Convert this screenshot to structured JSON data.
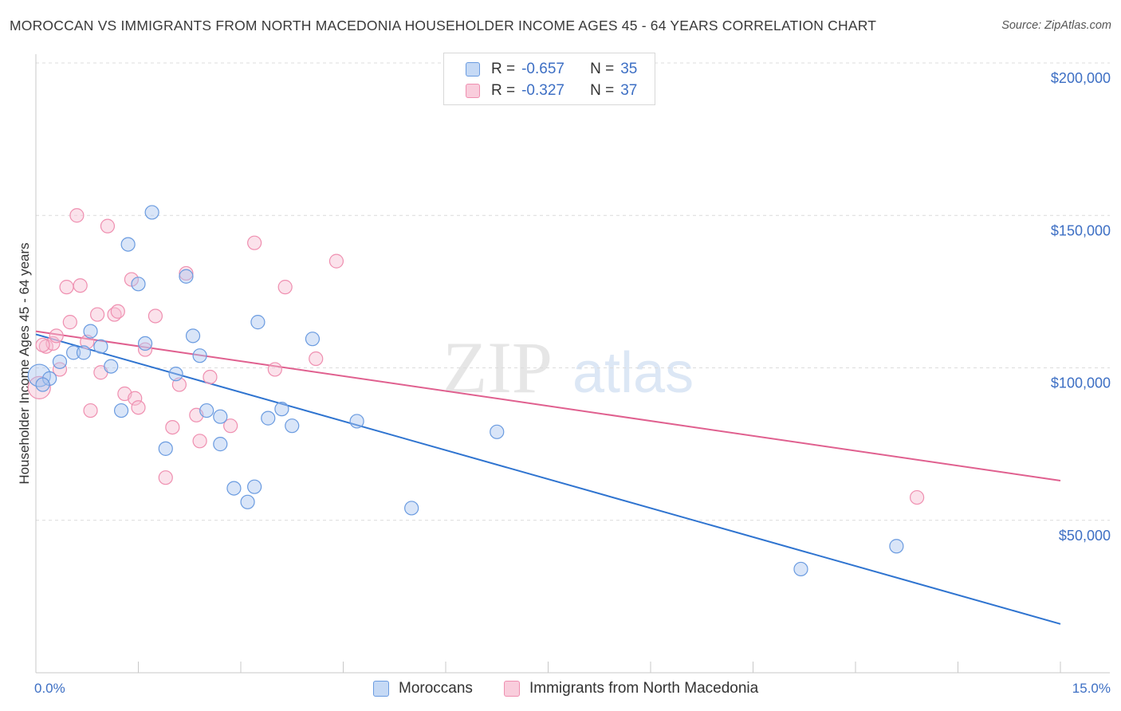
{
  "title": "MOROCCAN VS IMMIGRANTS FROM NORTH MACEDONIA HOUSEHOLDER INCOME AGES 45 - 64 YEARS CORRELATION CHART",
  "source": "Source: ZipAtlas.com",
  "watermark": {
    "zip": "ZIP",
    "atlas": "atlas"
  },
  "legend": {
    "r_label": "R =",
    "n_label": "N =",
    "rows": [
      {
        "r": "-0.657",
        "n": "35"
      },
      {
        "r": "-0.327",
        "n": "37"
      }
    ]
  },
  "bottom_legend": [
    "Moroccans",
    "Immigrants from North Macedonia"
  ],
  "chart_data": {
    "type": "scatter",
    "title": "MOROCCAN VS IMMIGRANTS FROM NORTH MACEDONIA HOUSEHOLDER INCOME AGES 45 - 64 YEARS CORRELATION CHART",
    "xlabel": "",
    "ylabel": "Householder Income Ages 45 - 64 years",
    "xlim": [
      0,
      15
    ],
    "ylim": [
      0,
      210000
    ],
    "x_tick_labels": [
      "0.0%",
      "15.0%"
    ],
    "y_tick_labels": [
      "$50,000",
      "$100,000",
      "$150,000",
      "$200,000"
    ],
    "y_tick_values": [
      50000,
      100000,
      150000,
      200000
    ],
    "grid": "horizontal dashed",
    "legend_position": "top-center",
    "colors": {
      "moroccans": "#6a9be0",
      "macedonia": "#ef8fb0",
      "moroccans_line": "#2f74d0",
      "macedonia_line": "#e0608f"
    },
    "series": [
      {
        "name": "Moroccans",
        "color": "#6a9be0",
        "points": [
          [
            0.05,
            97500
          ],
          [
            0.2,
            96500
          ],
          [
            0.35,
            102000
          ],
          [
            0.55,
            105000
          ],
          [
            0.7,
            105000
          ],
          [
            0.8,
            112000
          ],
          [
            0.95,
            107000
          ],
          [
            1.1,
            100500
          ],
          [
            1.25,
            86000
          ],
          [
            1.35,
            140500
          ],
          [
            1.5,
            127500
          ],
          [
            1.6,
            108000
          ],
          [
            1.7,
            151000
          ],
          [
            1.9,
            73500
          ],
          [
            2.05,
            98000
          ],
          [
            2.2,
            130000
          ],
          [
            2.3,
            110500
          ],
          [
            2.4,
            104000
          ],
          [
            2.5,
            86000
          ],
          [
            2.7,
            84000
          ],
          [
            2.7,
            75000
          ],
          [
            2.9,
            60500
          ],
          [
            3.1,
            56000
          ],
          [
            3.2,
            61000
          ],
          [
            3.25,
            115000
          ],
          [
            3.4,
            83500
          ],
          [
            3.6,
            86500
          ],
          [
            3.75,
            81000
          ],
          [
            4.05,
            109500
          ],
          [
            4.7,
            82500
          ],
          [
            5.5,
            54000
          ],
          [
            6.75,
            79000
          ],
          [
            11.2,
            34000
          ],
          [
            12.6,
            41500
          ],
          [
            0.1,
            94500
          ]
        ]
      },
      {
        "name": "Immigrants from North Macedonia",
        "color": "#ef8fb0",
        "points": [
          [
            0.05,
            93500
          ],
          [
            0.15,
            107000
          ],
          [
            0.25,
            108000
          ],
          [
            0.3,
            110500
          ],
          [
            0.35,
            99500
          ],
          [
            0.45,
            126500
          ],
          [
            0.5,
            115000
          ],
          [
            0.6,
            150000
          ],
          [
            0.65,
            127000
          ],
          [
            0.75,
            108500
          ],
          [
            0.8,
            86000
          ],
          [
            0.9,
            117500
          ],
          [
            0.95,
            98500
          ],
          [
            1.05,
            146500
          ],
          [
            1.15,
            117500
          ],
          [
            1.2,
            118500
          ],
          [
            1.3,
            91500
          ],
          [
            1.4,
            129000
          ],
          [
            1.45,
            90000
          ],
          [
            1.5,
            87000
          ],
          [
            1.6,
            106000
          ],
          [
            1.75,
            117000
          ],
          [
            1.9,
            64000
          ],
          [
            2.0,
            80500
          ],
          [
            2.1,
            94500
          ],
          [
            2.2,
            131000
          ],
          [
            2.35,
            84500
          ],
          [
            2.4,
            76000
          ],
          [
            2.55,
            97000
          ],
          [
            2.85,
            81000
          ],
          [
            3.2,
            141000
          ],
          [
            3.5,
            99500
          ],
          [
            3.65,
            126500
          ],
          [
            4.1,
            103000
          ],
          [
            4.4,
            135000
          ],
          [
            12.9,
            57500
          ],
          [
            0.1,
            107500
          ]
        ]
      }
    ],
    "trendlines": [
      {
        "series": "Moroccans",
        "x": [
          0,
          15
        ],
        "y": [
          111000,
          16000
        ]
      },
      {
        "series": "Immigrants from North Macedonia",
        "x": [
          0,
          15
        ],
        "y": [
          112000,
          63000
        ]
      }
    ]
  }
}
